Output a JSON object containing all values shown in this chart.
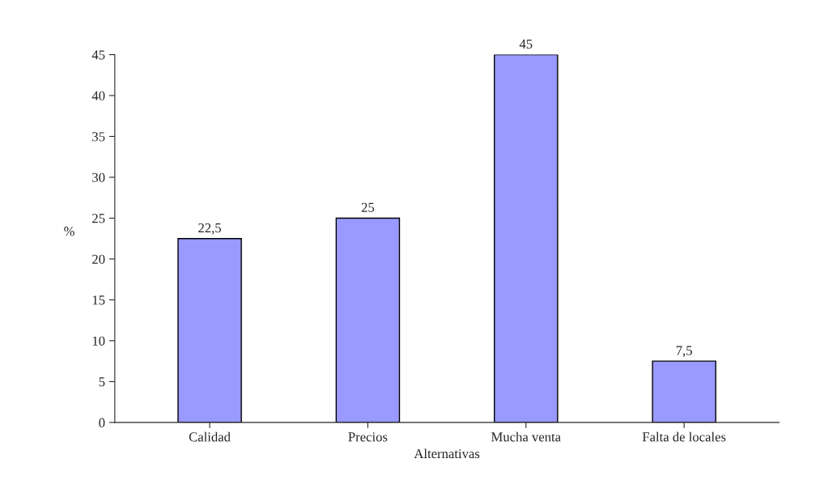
{
  "chart_data": {
    "type": "bar",
    "xlabel": "Alternativas",
    "ylabel": "%",
    "categories": [
      "Calidad",
      "Precios",
      "Mucha venta",
      "Falta de locales"
    ],
    "values": [
      22.5,
      25,
      45,
      7.5
    ],
    "value_labels": [
      "22,5",
      "25",
      "45",
      "7,5"
    ],
    "color": "#9999ff",
    "ylim": [
      0,
      45
    ],
    "yticks": [
      0,
      5,
      10,
      15,
      20,
      25,
      30,
      35,
      40,
      45
    ],
    "grid": false,
    "legend": false
  }
}
